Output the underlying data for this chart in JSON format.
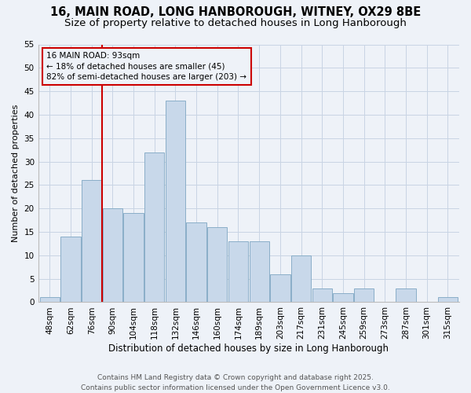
{
  "title_line1": "16, MAIN ROAD, LONG HANBOROUGH, WITNEY, OX29 8BE",
  "title_line2": "Size of property relative to detached houses in Long Hanborough",
  "xlabel": "Distribution of detached houses by size in Long Hanborough",
  "ylabel": "Number of detached properties",
  "categories": [
    "48sqm",
    "62sqm",
    "76sqm",
    "90sqm",
    "104sqm",
    "118sqm",
    "132sqm",
    "146sqm",
    "160sqm",
    "174sqm",
    "189sqm",
    "203sqm",
    "217sqm",
    "231sqm",
    "245sqm",
    "259sqm",
    "273sqm",
    "287sqm",
    "301sqm",
    "315sqm"
  ],
  "values": [
    1,
    14,
    26,
    20,
    19,
    32,
    43,
    17,
    16,
    13,
    13,
    6,
    10,
    3,
    2,
    3,
    0,
    3,
    0,
    1
  ],
  "bar_color": "#c8d8ea",
  "bar_edge_color": "#8aaec8",
  "bar_edge_width": 0.7,
  "vline_pos": 2.5,
  "vline_color": "#cc0000",
  "annotation_text": "16 MAIN ROAD: 93sqm\n← 18% of detached houses are smaller (45)\n82% of semi-detached houses are larger (203) →",
  "annotation_box_facecolor": "#eef2f8",
  "annotation_box_edgecolor": "#cc0000",
  "ylim": [
    0,
    55
  ],
  "yticks": [
    0,
    5,
    10,
    15,
    20,
    25,
    30,
    35,
    40,
    45,
    50,
    55
  ],
  "grid_color": "#c8d4e4",
  "bg_color": "#eef2f8",
  "footnote": "Contains HM Land Registry data © Crown copyright and database right 2025.\nContains public sector information licensed under the Open Government Licence v3.0.",
  "title_fontsize": 10.5,
  "subtitle_fontsize": 9.5,
  "xlabel_fontsize": 8.5,
  "ylabel_fontsize": 8,
  "tick_fontsize": 7.5,
  "annotation_fontsize": 7.5,
  "footnote_fontsize": 6.5
}
